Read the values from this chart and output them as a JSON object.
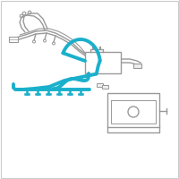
{
  "background_color": "#ffffff",
  "border_color": "#cccccc",
  "cable_color": "#1ab0cc",
  "gray_color": "#999999",
  "dark_gray": "#666666",
  "cable_linewidth": 2.8,
  "gray_linewidth": 1.0,
  "fig_size": [
    2.0,
    2.0
  ],
  "dpi": 100,
  "xlim": [
    0,
    200
  ],
  "ylim": [
    0,
    200
  ]
}
